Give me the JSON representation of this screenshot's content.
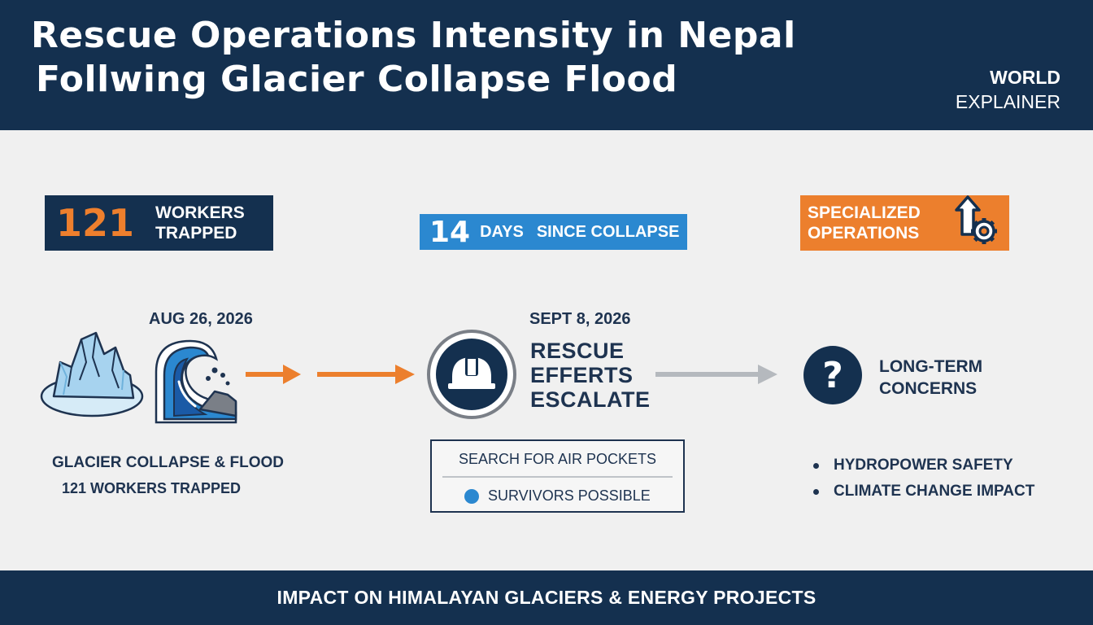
{
  "header": {
    "title_line1": "Rescue Operations Intensity in Nepal",
    "title_line2": "Follwing Glacier Collapse Flood",
    "brand_line1": "WORLD",
    "brand_line2": "EXPLAINER"
  },
  "stats": {
    "workers_number": "121",
    "workers_label_1": "WORKERS",
    "workers_label_2": "TRAPPED",
    "days_number": "14",
    "days_label": "DAYS",
    "days_suffix": "SINCE COLLAPSE",
    "specialized_1": "SPECIALIZED",
    "specialized_2": "OPERATIONS"
  },
  "timeline": {
    "event1_date": "AUG 26, 2026",
    "event1_caption_1": "GLACIER COLLAPSE & FLOOD",
    "event1_caption_2": "121 WORKERS TRAPPED",
    "event2_date": "SEPT 8, 2026",
    "event2_title_1": "RESCUE",
    "event2_title_2": "EFFERTS",
    "event2_title_3": "ESCALATE",
    "search_title": "SEARCH FOR AIR POCKETS",
    "search_status": "SURVIVORS POSSIBLE",
    "event3_title_1": "LONG-TERM",
    "event3_title_2": "CONCERNS",
    "concerns": [
      "HYDROPOWER SAFETY",
      "CLIMATE CHANGE IMPACT"
    ]
  },
  "footer": {
    "text": "IMPACT ON HIMALAYAN GLACIERS & ENERGY PROJECTS"
  },
  "colors": {
    "navy": "#14304f",
    "orange": "#ec7f2d",
    "blue": "#2b88d0",
    "text_dark": "#1e3350",
    "background": "#f0f0f0"
  },
  "icons": [
    "glacier-icon",
    "wave-flood-icon",
    "arrow-right-icon",
    "helmet-icon",
    "question-icon",
    "upload-gear-icon"
  ]
}
